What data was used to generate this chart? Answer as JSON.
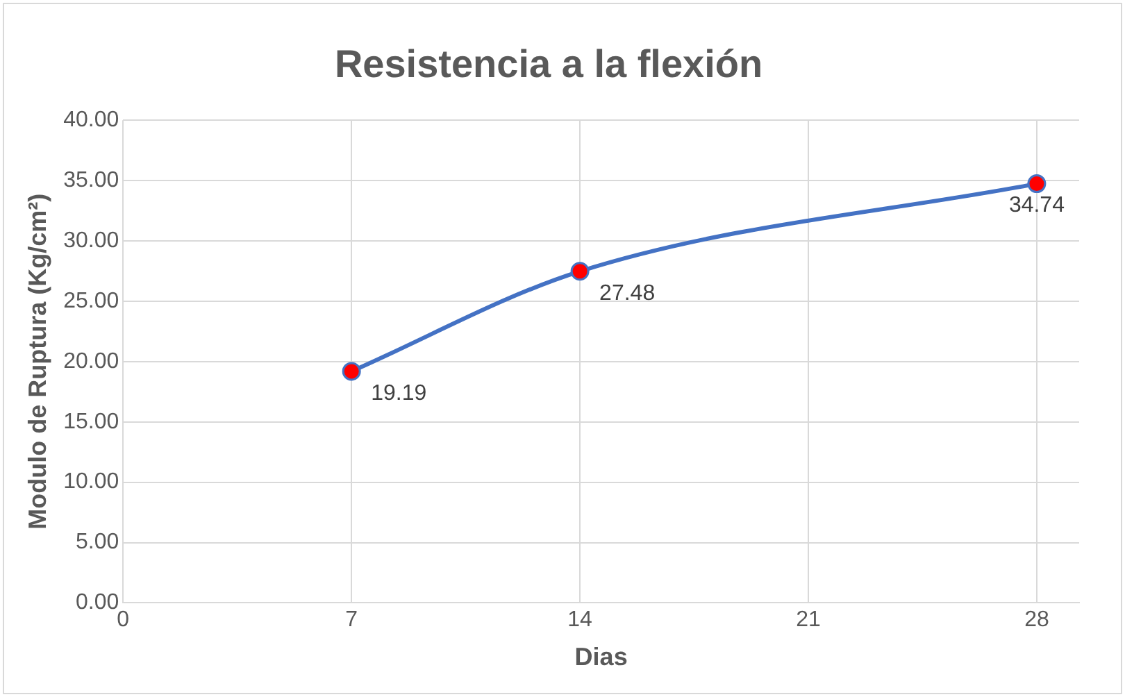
{
  "chart_data": {
    "type": "line",
    "title": "Resistencia a la flexión",
    "xlabel": "Dias",
    "ylabel": "Modulo de Ruptura (Kg/cm²)",
    "x": [
      7,
      14,
      28
    ],
    "series": [
      {
        "color": "#4472c4",
        "values": [
          19.19,
          27.48,
          34.74
        ]
      }
    ],
    "xlim": [
      0,
      29.3
    ],
    "xticks": [
      0,
      7,
      14,
      21,
      28
    ],
    "ylim": [
      0,
      40
    ],
    "yticks": [
      {
        "value": 0,
        "label": "0.00"
      },
      {
        "value": 5,
        "label": "5.00"
      },
      {
        "value": 10,
        "label": "10.00"
      },
      {
        "value": 15,
        "label": "15.00"
      },
      {
        "value": 20,
        "label": "20.00"
      },
      {
        "value": 25,
        "label": "25.00"
      },
      {
        "value": 30,
        "label": "30.00"
      },
      {
        "value": 35,
        "label": "35.00"
      },
      {
        "value": 40,
        "label": "40.00"
      }
    ],
    "grid": true,
    "legend": false,
    "marker": "circle",
    "data_labels": true
  }
}
